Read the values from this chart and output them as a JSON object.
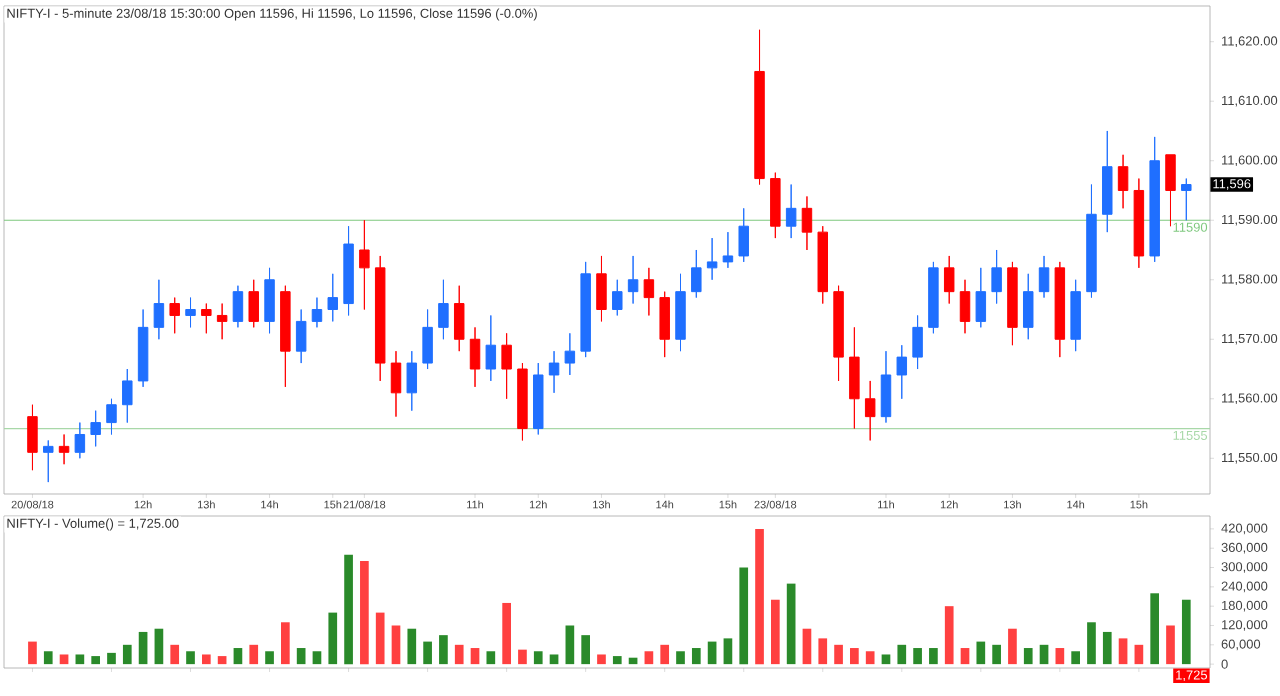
{
  "chart_data": [
    {
      "type": "candlestick",
      "title": "NIFTY-I - 5-minute 23/08/18 15:30:00 Open 11596, Hi 11596, Lo 11596, Close 11596 (-0.0%)",
      "categories": [
        "20/08/18",
        null,
        null,
        null,
        null,
        null,
        null,
        "12h",
        null,
        null,
        null,
        "13h",
        null,
        null,
        null,
        "14h",
        null,
        null,
        null,
        "15h",
        null,
        "21/08/18",
        null,
        null,
        null,
        null,
        null,
        null,
        "11h",
        null,
        null,
        null,
        "12h",
        null,
        null,
        null,
        "13h",
        null,
        null,
        null,
        "14h",
        null,
        null,
        null,
        "15h",
        null,
        null,
        "23/08/18",
        null,
        null,
        null,
        null,
        null,
        null,
        "11h",
        null,
        null,
        null,
        "12h",
        null,
        null,
        null,
        "13h",
        null,
        null,
        null,
        "14h",
        null,
        null,
        null,
        "15h",
        null,
        null,
        null
      ],
      "ohlc": [
        [
          11557,
          11559,
          11548,
          11551
        ],
        [
          11551,
          11553,
          11546,
          11552
        ],
        [
          11552,
          11554,
          11549,
          11551
        ],
        [
          11551,
          11556,
          11550,
          11554
        ],
        [
          11554,
          11558,
          11552,
          11556
        ],
        [
          11556,
          11560,
          11554,
          11559
        ],
        [
          11559,
          11565,
          11556,
          11563
        ],
        [
          11563,
          11575,
          11562,
          11572
        ],
        [
          11572,
          11580,
          11570,
          11576
        ],
        [
          11576,
          11577,
          11571,
          11574
        ],
        [
          11574,
          11577,
          11572,
          11575
        ],
        [
          11575,
          11576,
          11571,
          11574
        ],
        [
          11574,
          11576,
          11570,
          11573
        ],
        [
          11573,
          11579,
          11572,
          11578
        ],
        [
          11578,
          11580,
          11572,
          11573
        ],
        [
          11573,
          11582,
          11571,
          11580
        ],
        [
          11578,
          11579,
          11562,
          11568
        ],
        [
          11568,
          11575,
          11566,
          11573
        ],
        [
          11573,
          11577,
          11572,
          11575
        ],
        [
          11575,
          11581,
          11573,
          11577
        ],
        [
          11576,
          11589,
          11574,
          11586
        ],
        [
          11585,
          11590,
          11575,
          11582
        ],
        [
          11582,
          11584,
          11563,
          11566
        ],
        [
          11566,
          11568,
          11557,
          11561
        ],
        [
          11561,
          11568,
          11558,
          11566
        ],
        [
          11566,
          11575,
          11565,
          11572
        ],
        [
          11572,
          11580,
          11570,
          11576
        ],
        [
          11576,
          11579,
          11568,
          11570
        ],
        [
          11570,
          11572,
          11562,
          11565
        ],
        [
          11565,
          11574,
          11563,
          11569
        ],
        [
          11569,
          11571,
          11560,
          11565
        ],
        [
          11565,
          11566,
          11553,
          11555
        ],
        [
          11555,
          11566,
          11554,
          11564
        ],
        [
          11564,
          11568,
          11561,
          11566
        ],
        [
          11566,
          11571,
          11564,
          11568
        ],
        [
          11568,
          11583,
          11567,
          11581
        ],
        [
          11581,
          11584,
          11573,
          11575
        ],
        [
          11575,
          11580,
          11574,
          11578
        ],
        [
          11578,
          11584,
          11576,
          11580
        ],
        [
          11580,
          11582,
          11574,
          11577
        ],
        [
          11577,
          11578,
          11567,
          11570
        ],
        [
          11570,
          11581,
          11568,
          11578
        ],
        [
          11578,
          11585,
          11577,
          11582
        ],
        [
          11582,
          11587,
          11580,
          11583
        ],
        [
          11583,
          11588,
          11582,
          11584
        ],
        [
          11584,
          11592,
          11583,
          11589
        ],
        [
          11615,
          11622,
          11596,
          11597
        ],
        [
          11597,
          11598,
          11587,
          11589
        ],
        [
          11589,
          11596,
          11587,
          11592
        ],
        [
          11592,
          11594,
          11585,
          11588
        ],
        [
          11588,
          11589,
          11576,
          11578
        ],
        [
          11578,
          11579,
          11563,
          11567
        ],
        [
          11567,
          11572,
          11555,
          11560
        ],
        [
          11560,
          11563,
          11553,
          11557
        ],
        [
          11557,
          11568,
          11556,
          11564
        ],
        [
          11564,
          11569,
          11560,
          11567
        ],
        [
          11567,
          11574,
          11565,
          11572
        ],
        [
          11572,
          11583,
          11571,
          11582
        ],
        [
          11582,
          11584,
          11576,
          11578
        ],
        [
          11578,
          11580,
          11571,
          11573
        ],
        [
          11573,
          11582,
          11572,
          11578
        ],
        [
          11578,
          11585,
          11576,
          11582
        ],
        [
          11582,
          11583,
          11569,
          11572
        ],
        [
          11572,
          11581,
          11570,
          11578
        ],
        [
          11578,
          11584,
          11577,
          11582
        ],
        [
          11582,
          11583,
          11567,
          11570
        ],
        [
          11570,
          11580,
          11568,
          11578
        ],
        [
          11578,
          11596,
          11577,
          11591
        ],
        [
          11591,
          11605,
          11588,
          11599
        ],
        [
          11599,
          11601,
          11592,
          11595
        ],
        [
          11595,
          11597,
          11582,
          11584
        ],
        [
          11584,
          11604,
          11583,
          11600
        ],
        [
          11601,
          11601,
          11589,
          11595
        ],
        [
          11595,
          11597,
          11590,
          11596
        ]
      ],
      "colors": [
        "#ff0000",
        "#1f6fff",
        "#ff0000",
        "#1f6fff",
        "#1f6fff",
        "#1f6fff",
        "#1f6fff",
        "#1f6fff",
        "#1f6fff",
        "#ff0000",
        "#1f6fff",
        "#ff0000",
        "#ff0000",
        "#1f6fff",
        "#ff0000",
        "#1f6fff",
        "#ff0000",
        "#1f6fff",
        "#1f6fff",
        "#1f6fff",
        "#1f6fff",
        "#ff0000",
        "#ff0000",
        "#ff0000",
        "#1f6fff",
        "#1f6fff",
        "#1f6fff",
        "#ff0000",
        "#ff0000",
        "#1f6fff",
        "#ff0000",
        "#ff0000",
        "#1f6fff",
        "#1f6fff",
        "#1f6fff",
        "#1f6fff",
        "#ff0000",
        "#1f6fff",
        "#1f6fff",
        "#ff0000",
        "#ff0000",
        "#1f6fff",
        "#1f6fff",
        "#1f6fff",
        "#1f6fff",
        "#1f6fff",
        "#ff0000",
        "#ff0000",
        "#1f6fff",
        "#ff0000",
        "#ff0000",
        "#ff0000",
        "#ff0000",
        "#ff0000",
        "#1f6fff",
        "#1f6fff",
        "#1f6fff",
        "#1f6fff",
        "#ff0000",
        "#ff0000",
        "#1f6fff",
        "#1f6fff",
        "#ff0000",
        "#1f6fff",
        "#1f6fff",
        "#ff0000",
        "#1f6fff",
        "#1f6fff",
        "#1f6fff",
        "#ff0000",
        "#ff0000",
        "#1f6fff",
        "#ff0000",
        "#1f6fff"
      ],
      "ylim": [
        11544,
        11626
      ],
      "yticks": [
        {
          "value": 11550,
          "label": "11,550.00"
        },
        {
          "value": 11560,
          "label": "11,560.00"
        },
        {
          "value": 11570,
          "label": "11,570.00"
        },
        {
          "value": 11580,
          "label": "11,580.00"
        },
        {
          "value": 11590,
          "label": "11,590.00"
        },
        {
          "value": 11600,
          "label": "11,600.00"
        },
        {
          "value": 11610,
          "label": "11,610.00"
        },
        {
          "value": 11620,
          "label": "11,620.00"
        }
      ],
      "ref_lines": [
        {
          "axis": "y",
          "value": 11590,
          "label": "11590",
          "color": "#7ec87e"
        },
        {
          "axis": "y",
          "value": 11555,
          "label": "11555",
          "color": "#a8d8a8"
        }
      ],
      "annotations": [
        "11,596"
      ]
    },
    {
      "type": "bar",
      "title": "NIFTY-I - Volume() = 1,725.00",
      "categories": [
        null,
        null,
        null,
        null,
        null,
        null,
        null,
        null,
        null,
        null,
        null,
        null,
        null,
        null,
        null,
        null,
        null,
        null,
        null,
        null,
        null,
        null,
        null,
        null,
        null,
        null,
        null,
        null,
        null,
        null,
        null,
        null,
        null,
        null,
        null,
        null,
        null,
        null,
        null,
        null,
        null,
        null,
        null,
        null,
        null,
        null,
        null,
        null,
        null,
        null,
        null,
        null,
        null,
        null,
        null,
        null,
        null,
        null,
        null,
        null,
        null,
        null,
        null,
        null,
        null,
        null,
        null,
        null,
        null,
        null,
        null,
        null,
        null,
        null
      ],
      "values": [
        70000,
        40000,
        30000,
        30000,
        25000,
        35000,
        60000,
        100000,
        110000,
        60000,
        40000,
        30000,
        25000,
        50000,
        60000,
        40000,
        130000,
        50000,
        40000,
        160000,
        340000,
        320000,
        160000,
        120000,
        110000,
        70000,
        90000,
        60000,
        50000,
        40000,
        190000,
        45000,
        40000,
        30000,
        120000,
        90000,
        30000,
        25000,
        20000,
        40000,
        60000,
        40000,
        50000,
        70000,
        80000,
        300000,
        420000,
        200000,
        250000,
        110000,
        80000,
        60000,
        50000,
        40000,
        30000,
        60000,
        50000,
        50000,
        180000,
        50000,
        70000,
        60000,
        110000,
        50000,
        60000,
        50000,
        40000,
        130000,
        100000,
        80000,
        60000,
        220000,
        120000,
        200000
      ],
      "colors": [
        "#ff4040",
        "#2a8a2a",
        "#ff4040",
        "#2a8a2a",
        "#2a8a2a",
        "#2a8a2a",
        "#2a8a2a",
        "#2a8a2a",
        "#2a8a2a",
        "#ff4040",
        "#2a8a2a",
        "#ff4040",
        "#ff4040",
        "#2a8a2a",
        "#ff4040",
        "#2a8a2a",
        "#ff4040",
        "#2a8a2a",
        "#2a8a2a",
        "#2a8a2a",
        "#2a8a2a",
        "#ff4040",
        "#ff4040",
        "#ff4040",
        "#2a8a2a",
        "#2a8a2a",
        "#2a8a2a",
        "#ff4040",
        "#ff4040",
        "#2a8a2a",
        "#ff4040",
        "#ff4040",
        "#2a8a2a",
        "#2a8a2a",
        "#2a8a2a",
        "#2a8a2a",
        "#ff4040",
        "#2a8a2a",
        "#2a8a2a",
        "#ff4040",
        "#ff4040",
        "#2a8a2a",
        "#2a8a2a",
        "#2a8a2a",
        "#2a8a2a",
        "#2a8a2a",
        "#ff4040",
        "#ff4040",
        "#2a8a2a",
        "#ff4040",
        "#ff4040",
        "#ff4040",
        "#ff4040",
        "#ff4040",
        "#2a8a2a",
        "#2a8a2a",
        "#2a8a2a",
        "#2a8a2a",
        "#ff4040",
        "#ff4040",
        "#2a8a2a",
        "#2a8a2a",
        "#ff4040",
        "#2a8a2a",
        "#2a8a2a",
        "#ff4040",
        "#2a8a2a",
        "#2a8a2a",
        "#2a8a2a",
        "#ff4040",
        "#ff4040",
        "#2a8a2a",
        "#ff4040",
        "#2a8a2a"
      ],
      "ylim": [
        -12000,
        460000
      ],
      "yticks": [
        {
          "value": 0,
          "label": "0"
        },
        {
          "value": 60000,
          "label": "60,000"
        },
        {
          "value": 120000,
          "label": "120,000"
        },
        {
          "value": 180000,
          "label": "180,000"
        },
        {
          "value": 240000,
          "label": "240,000"
        },
        {
          "value": 300000,
          "label": "300,000"
        },
        {
          "value": 360000,
          "label": "360,000"
        },
        {
          "value": 420000,
          "label": "420,000"
        }
      ],
      "tick_labels": "y",
      "annotations": [
        "1,725"
      ]
    }
  ]
}
